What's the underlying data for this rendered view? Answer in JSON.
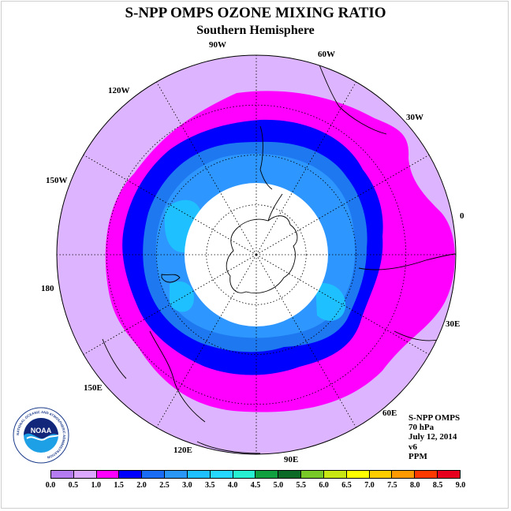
{
  "title": "S-NPP OMPS OZONE MIXING RATIO",
  "subtitle": "Southern Hemisphere",
  "longitude_labels": [
    "90W",
    "60W",
    "30W",
    "0",
    "30E",
    "60E",
    "90E",
    "120E",
    "150E",
    "180",
    "150W",
    "120W"
  ],
  "info": {
    "instrument": "S-NPP OMPS",
    "level": "70 hPa",
    "date": "July 12, 2014",
    "version": "v6",
    "units": "PPM"
  },
  "logo": {
    "text": "NOAA",
    "ring_text": "NATIONAL OCEANIC AND ATMOSPHERIC ADMINISTRATION"
  },
  "colorbar": {
    "ticks": [
      "0.0",
      "0.5",
      "1.0",
      "1.5",
      "2.0",
      "2.5",
      "3.0",
      "3.5",
      "4.0",
      "4.5",
      "5.0",
      "5.5",
      "6.0",
      "6.5",
      "7.0",
      "7.5",
      "8.0",
      "8.5",
      "9.0"
    ],
    "colors": [
      "#b47cf0",
      "#dca8ff",
      "#ff00ff",
      "#0000ff",
      "#1a6cf5",
      "#2a96f5",
      "#1ec0ff",
      "#26d8ff",
      "#27f0d2",
      "#10a040",
      "#0a6a26",
      "#78c828",
      "#c8e614",
      "#ffff00",
      "#ffcc00",
      "#ff9a00",
      "#ff3a00",
      "#e6001e",
      "#8a5a3c"
    ]
  },
  "map_colors": {
    "outer": "#dcb4ff",
    "band_1_0": "#ff00ff",
    "band_1_5": "#0000ff",
    "band_2_0": "#1e78f0",
    "band_2_5": "#2d96ff",
    "band_3_0": "#1ec0ff",
    "no_data": "#ffffff"
  }
}
